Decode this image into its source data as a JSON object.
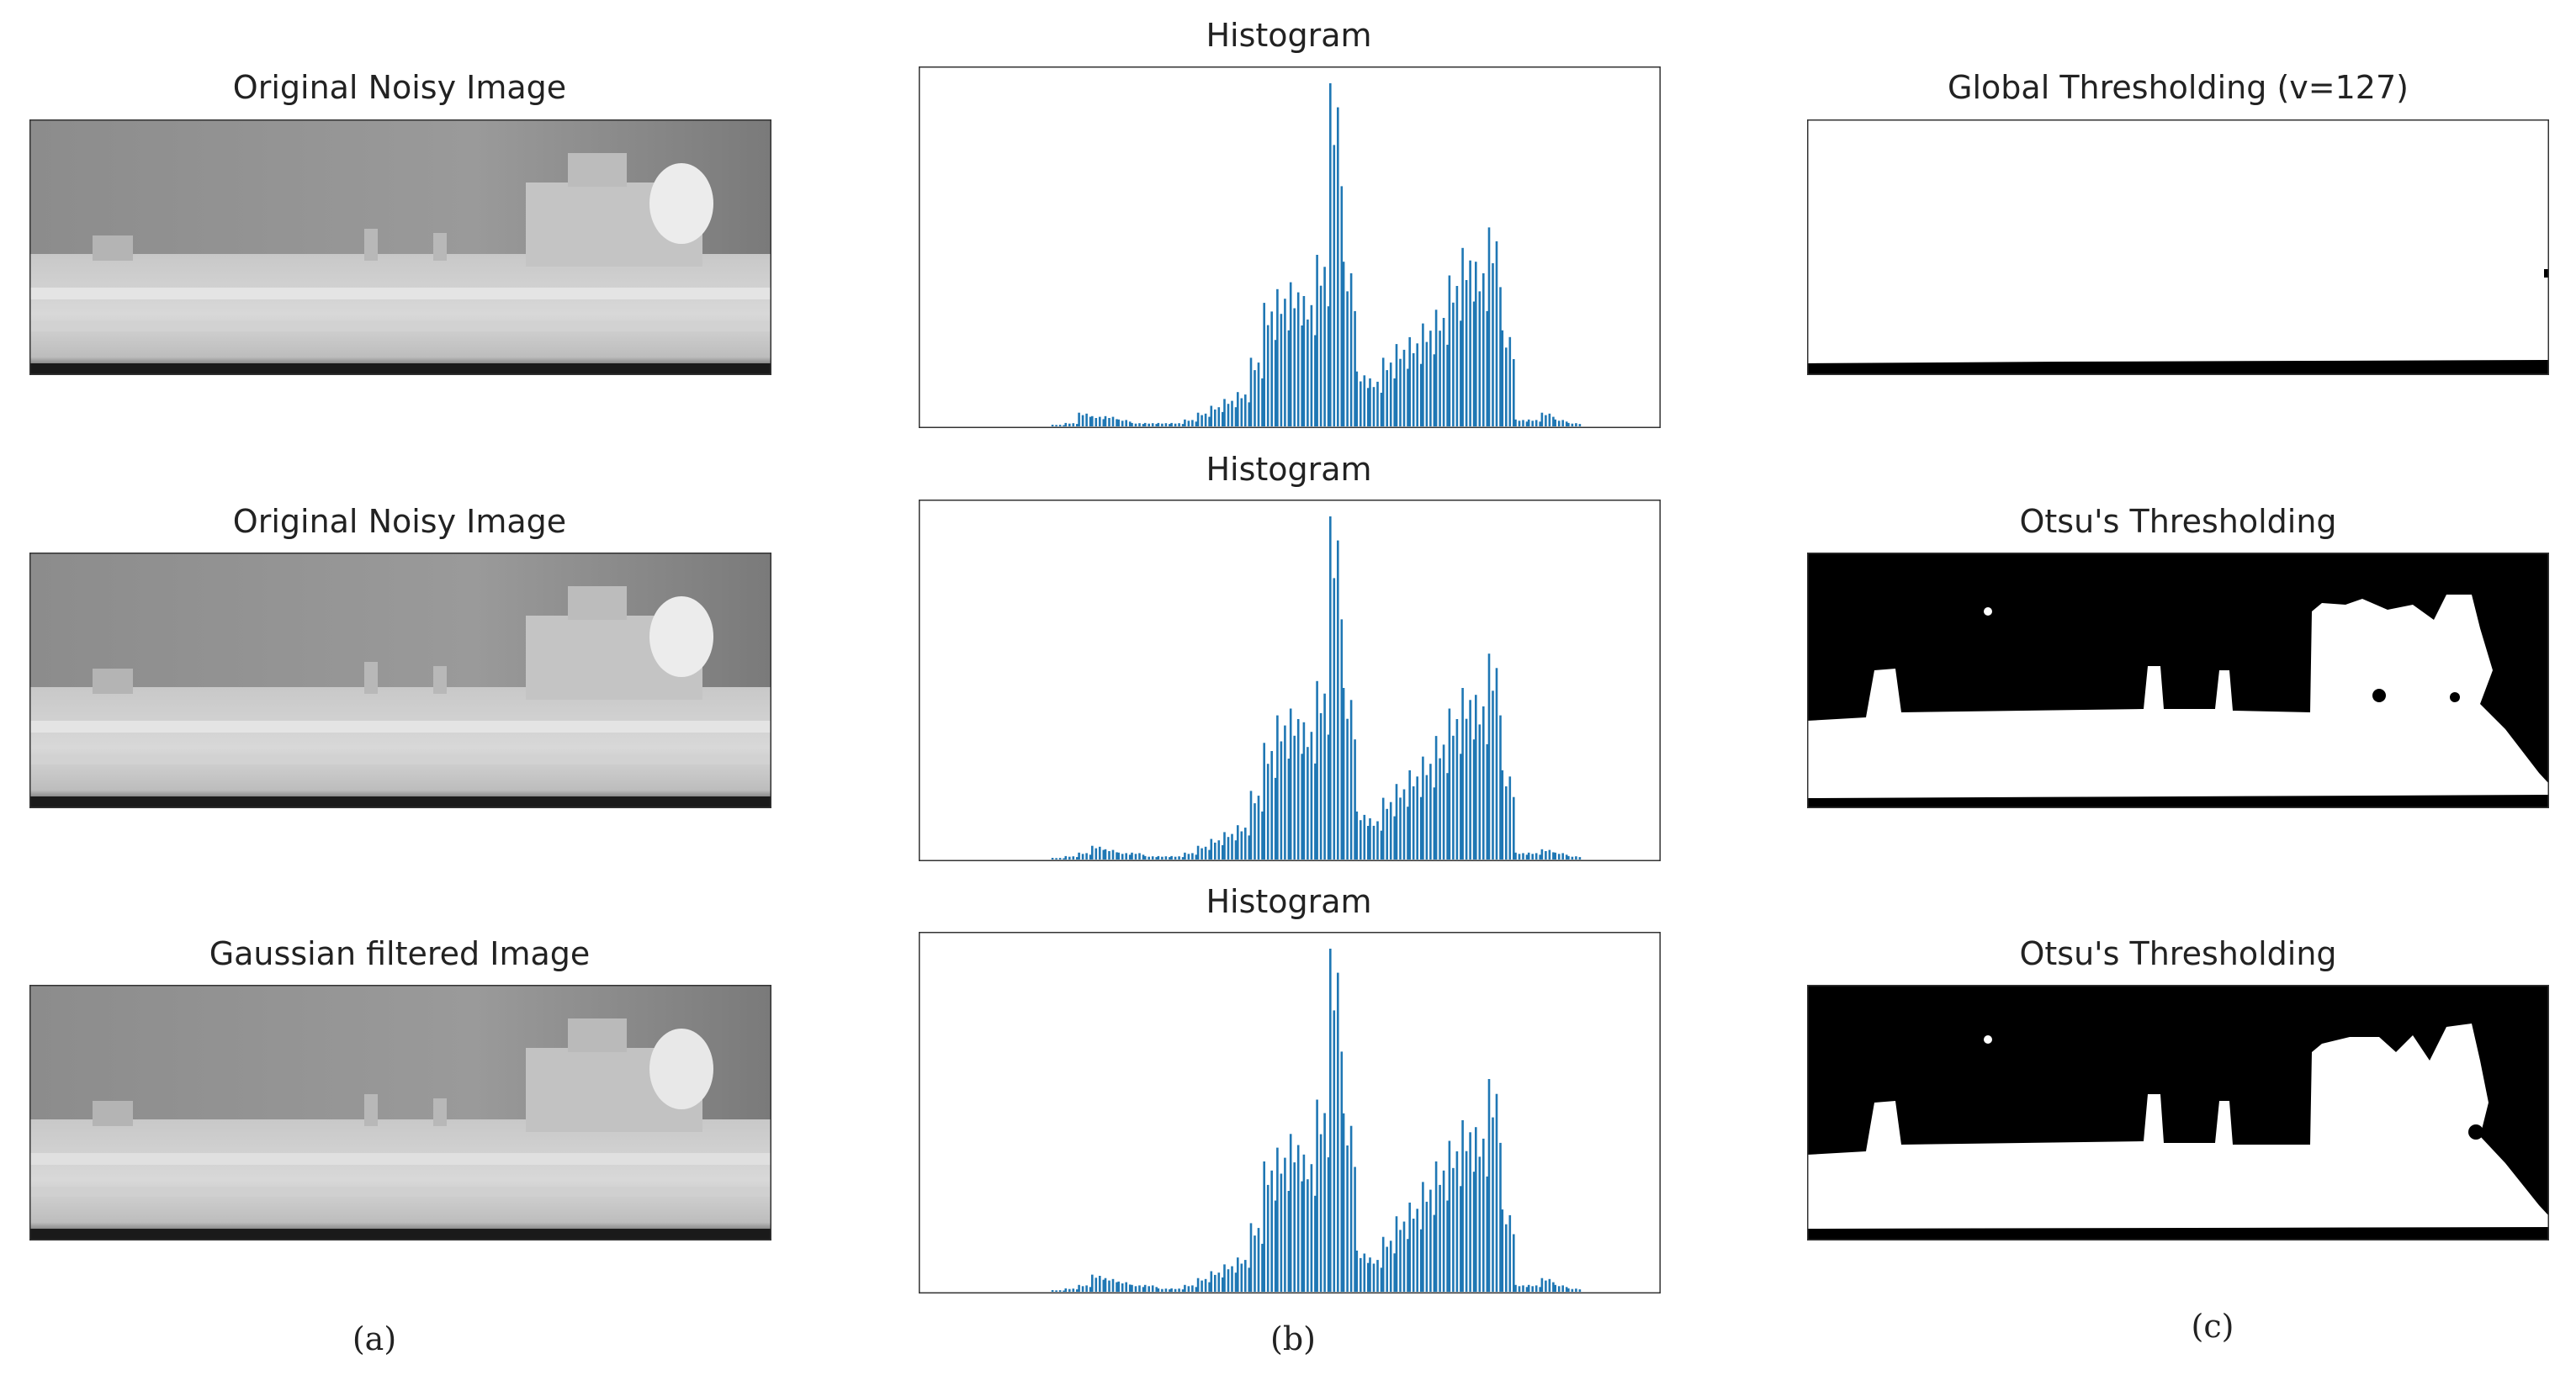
{
  "figure": {
    "column_a": {
      "row1_title": "Original Noisy Image",
      "row2_title": "Original Noisy Image",
      "row3_title": "Gaussian filtered Image",
      "caption": "(a)"
    },
    "column_b": {
      "row1_title": "Histogram",
      "row2_title": "Histogram",
      "row3_title": "Histogram",
      "caption": "(b)"
    },
    "column_c": {
      "row1_title": "Global Thresholding (v=127)",
      "row2_title": "Otsu's Thresholding",
      "row3_title": "Otsu's Thresholding",
      "caption": "(c)"
    }
  },
  "colors": {
    "bar": "#1f77b4",
    "frame": "#333333"
  },
  "chart_data": [
    {
      "type": "bar",
      "title": "Histogram",
      "xlim": [
        0,
        255
      ],
      "ylim": [
        0,
        1
      ],
      "series": [
        {
          "x": [
            40,
            45,
            50,
            55,
            60,
            65,
            70,
            75,
            80,
            85,
            90,
            95,
            100,
            105,
            110,
            115,
            120,
            125,
            130,
            135,
            140,
            145,
            150,
            155,
            160,
            165,
            170,
            175,
            180,
            185,
            190,
            195,
            200,
            205,
            210,
            215,
            220,
            225,
            230,
            235
          ],
          "values": [
            0.005,
            0.01,
            0.04,
            0.03,
            0.03,
            0.02,
            0.01,
            0.01,
            0.01,
            0.01,
            0.02,
            0.04,
            0.06,
            0.08,
            0.1,
            0.2,
            0.36,
            0.4,
            0.42,
            0.38,
            0.5,
            1.0,
            0.48,
            0.16,
            0.14,
            0.2,
            0.24,
            0.26,
            0.3,
            0.34,
            0.44,
            0.52,
            0.48,
            0.58,
            0.28,
            0.02,
            0.02,
            0.04,
            0.02,
            0.01
          ]
        }
      ]
    },
    {
      "type": "bar",
      "title": "Histogram",
      "xlim": [
        0,
        255
      ],
      "ylim": [
        0,
        1
      ],
      "series": [
        {
          "x": [
            40,
            45,
            50,
            55,
            60,
            65,
            70,
            75,
            80,
            85,
            90,
            95,
            100,
            105,
            110,
            115,
            120,
            125,
            130,
            135,
            140,
            145,
            150,
            155,
            160,
            165,
            170,
            175,
            180,
            185,
            190,
            195,
            200,
            205,
            210,
            215,
            220,
            225,
            230,
            235
          ],
          "values": [
            0.005,
            0.01,
            0.02,
            0.04,
            0.03,
            0.02,
            0.02,
            0.01,
            0.01,
            0.01,
            0.02,
            0.04,
            0.06,
            0.08,
            0.1,
            0.2,
            0.34,
            0.42,
            0.44,
            0.4,
            0.52,
            1.0,
            0.5,
            0.14,
            0.12,
            0.18,
            0.22,
            0.26,
            0.3,
            0.36,
            0.44,
            0.5,
            0.48,
            0.6,
            0.26,
            0.02,
            0.02,
            0.03,
            0.02,
            0.01
          ]
        }
      ]
    },
    {
      "type": "bar",
      "title": "Histogram",
      "xlim": [
        0,
        255
      ],
      "ylim": [
        0,
        1
      ],
      "series": [
        {
          "x": [
            40,
            45,
            50,
            55,
            60,
            65,
            70,
            75,
            80,
            85,
            90,
            95,
            100,
            105,
            110,
            115,
            120,
            125,
            130,
            135,
            140,
            145,
            150,
            155,
            160,
            165,
            170,
            175,
            180,
            185,
            190,
            195,
            200,
            205,
            210,
            215,
            220,
            225,
            230,
            235
          ],
          "values": [
            0.005,
            0.01,
            0.02,
            0.05,
            0.04,
            0.03,
            0.02,
            0.02,
            0.01,
            0.01,
            0.02,
            0.04,
            0.06,
            0.08,
            0.1,
            0.2,
            0.38,
            0.42,
            0.46,
            0.4,
            0.56,
            1.0,
            0.52,
            0.12,
            0.1,
            0.16,
            0.22,
            0.26,
            0.32,
            0.38,
            0.44,
            0.5,
            0.48,
            0.62,
            0.24,
            0.02,
            0.02,
            0.04,
            0.02,
            0.01
          ]
        }
      ]
    }
  ]
}
